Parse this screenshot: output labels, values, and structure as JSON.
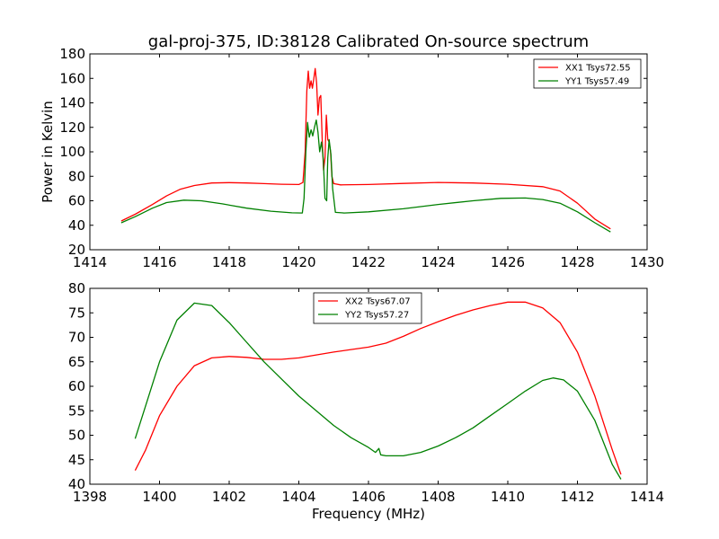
{
  "chart_data": [
    {
      "type": "line",
      "title": "gal-proj-375, ID:38128 Calibrated On-source spectrum",
      "xlabel": "",
      "ylabel": "Power in Kelvin",
      "xlim": [
        1414,
        1430
      ],
      "ylim": [
        20,
        180
      ],
      "xticks": [
        1414,
        1416,
        1418,
        1420,
        1422,
        1424,
        1426,
        1428,
        1430
      ],
      "yticks": [
        20,
        40,
        60,
        80,
        100,
        120,
        140,
        160,
        180
      ],
      "legend_position": "top-right",
      "grid": false,
      "series": [
        {
          "name": "XX1 Tsys72.55",
          "color": "#ff0000",
          "points": [
            [
              1414.9,
              43.5
            ],
            [
              1415.3,
              49
            ],
            [
              1415.8,
              57
            ],
            [
              1416.2,
              64
            ],
            [
              1416.6,
              69.5
            ],
            [
              1417.0,
              72.5
            ],
            [
              1417.5,
              74.5
            ],
            [
              1418.0,
              74.8
            ],
            [
              1418.5,
              74.5
            ],
            [
              1419.0,
              74
            ],
            [
              1419.5,
              73.5
            ],
            [
              1420.0,
              73.3
            ],
            [
              1420.12,
              75
            ],
            [
              1420.18,
              100
            ],
            [
              1420.23,
              150
            ],
            [
              1420.27,
              166
            ],
            [
              1420.31,
              152
            ],
            [
              1420.35,
              158
            ],
            [
              1420.39,
              152
            ],
            [
              1420.43,
              160
            ],
            [
              1420.47,
              168
            ],
            [
              1420.51,
              156
            ],
            [
              1420.55,
              130
            ],
            [
              1420.59,
              144
            ],
            [
              1420.63,
              146
            ],
            [
              1420.67,
              110
            ],
            [
              1420.71,
              85
            ],
            [
              1420.75,
              95
            ],
            [
              1420.79,
              130
            ],
            [
              1420.83,
              110
            ],
            [
              1420.87,
              108
            ],
            [
              1420.91,
              100
            ],
            [
              1420.95,
              80
            ],
            [
              1421.0,
              74
            ],
            [
              1421.2,
              73
            ],
            [
              1422.0,
              73.3
            ],
            [
              1423.0,
              74.2
            ],
            [
              1424.0,
              75
            ],
            [
              1425.0,
              74.5
            ],
            [
              1426.0,
              73.5
            ],
            [
              1427.0,
              71.5
            ],
            [
              1427.5,
              68
            ],
            [
              1428.0,
              58
            ],
            [
              1428.5,
              45
            ],
            [
              1428.95,
              37
            ]
          ]
        },
        {
          "name": "YY1 Tsys57.49",
          "color": "#008000",
          "points": [
            [
              1414.9,
              42
            ],
            [
              1415.3,
              47
            ],
            [
              1415.8,
              54
            ],
            [
              1416.2,
              58.5
            ],
            [
              1416.7,
              60.5
            ],
            [
              1417.2,
              60
            ],
            [
              1417.8,
              57.5
            ],
            [
              1418.5,
              54
            ],
            [
              1419.2,
              51.5
            ],
            [
              1419.8,
              50.2
            ],
            [
              1420.1,
              50
            ],
            [
              1420.15,
              62
            ],
            [
              1420.2,
              100
            ],
            [
              1420.25,
              124
            ],
            [
              1420.3,
              112
            ],
            [
              1420.35,
              118
            ],
            [
              1420.4,
              113
            ],
            [
              1420.45,
              120
            ],
            [
              1420.5,
              126
            ],
            [
              1420.55,
              116
            ],
            [
              1420.6,
              100
            ],
            [
              1420.65,
              108
            ],
            [
              1420.7,
              95
            ],
            [
              1420.75,
              62
            ],
            [
              1420.8,
              60
            ],
            [
              1420.83,
              95
            ],
            [
              1420.87,
              110
            ],
            [
              1420.92,
              98
            ],
            [
              1420.97,
              70
            ],
            [
              1421.05,
              50.5
            ],
            [
              1421.3,
              50
            ],
            [
              1422.0,
              51
            ],
            [
              1423.0,
              53.5
            ],
            [
              1424.0,
              57
            ],
            [
              1425.0,
              60
            ],
            [
              1425.8,
              62
            ],
            [
              1426.5,
              62.3
            ],
            [
              1427.0,
              61
            ],
            [
              1427.5,
              58
            ],
            [
              1428.0,
              51
            ],
            [
              1428.5,
              42
            ],
            [
              1428.95,
              34.5
            ]
          ]
        }
      ]
    },
    {
      "type": "line",
      "title": "",
      "xlabel": "Frequency (MHz)",
      "ylabel": "",
      "xlim": [
        1398,
        1414
      ],
      "ylim": [
        40,
        80
      ],
      "xticks": [
        1398,
        1400,
        1402,
        1404,
        1406,
        1408,
        1410,
        1412,
        1414
      ],
      "yticks": [
        40,
        45,
        50,
        55,
        60,
        65,
        70,
        75,
        80
      ],
      "legend_position": "top-center",
      "grid": false,
      "series": [
        {
          "name": "XX2 Tsys67.07",
          "color": "#ff0000",
          "points": [
            [
              1399.3,
              42.8
            ],
            [
              1399.6,
              47
            ],
            [
              1400.0,
              54
            ],
            [
              1400.5,
              60
            ],
            [
              1401.0,
              64.2
            ],
            [
              1401.5,
              65.8
            ],
            [
              1402.0,
              66.1
            ],
            [
              1402.5,
              65.9
            ],
            [
              1403.0,
              65.5
            ],
            [
              1403.5,
              65.5
            ],
            [
              1404.0,
              65.8
            ],
            [
              1404.5,
              66.4
            ],
            [
              1405.0,
              67
            ],
            [
              1405.5,
              67.5
            ],
            [
              1406.0,
              68
            ],
            [
              1406.5,
              68.8
            ],
            [
              1407.0,
              70.2
            ],
            [
              1407.5,
              71.8
            ],
            [
              1408.0,
              73.2
            ],
            [
              1408.5,
              74.5
            ],
            [
              1409.0,
              75.6
            ],
            [
              1409.5,
              76.5
            ],
            [
              1410.0,
              77.2
            ],
            [
              1410.5,
              77.2
            ],
            [
              1411.0,
              76
            ],
            [
              1411.5,
              73
            ],
            [
              1412.0,
              67
            ],
            [
              1412.5,
              58
            ],
            [
              1413.0,
              47
            ],
            [
              1413.25,
              42
            ]
          ]
        },
        {
          "name": "YY2 Tsys57.27",
          "color": "#008000",
          "points": [
            [
              1399.3,
              49.3
            ],
            [
              1399.6,
              56
            ],
            [
              1400.0,
              65
            ],
            [
              1400.5,
              73.5
            ],
            [
              1401.0,
              77
            ],
            [
              1401.5,
              76.5
            ],
            [
              1402.0,
              73
            ],
            [
              1402.5,
              69
            ],
            [
              1403.0,
              65
            ],
            [
              1403.5,
              61.5
            ],
            [
              1404.0,
              58
            ],
            [
              1404.5,
              55
            ],
            [
              1405.0,
              52
            ],
            [
              1405.5,
              49.5
            ],
            [
              1406.0,
              47.5
            ],
            [
              1406.2,
              46.5
            ],
            [
              1406.3,
              47.3
            ],
            [
              1406.35,
              46
            ],
            [
              1406.5,
              45.8
            ],
            [
              1407.0,
              45.8
            ],
            [
              1407.5,
              46.5
            ],
            [
              1408.0,
              47.8
            ],
            [
              1408.5,
              49.5
            ],
            [
              1409.0,
              51.5
            ],
            [
              1409.5,
              54
            ],
            [
              1410.0,
              56.5
            ],
            [
              1410.5,
              59
            ],
            [
              1411.0,
              61.2
            ],
            [
              1411.3,
              61.7
            ],
            [
              1411.6,
              61.3
            ],
            [
              1412.0,
              59
            ],
            [
              1412.5,
              53
            ],
            [
              1413.0,
              44
            ],
            [
              1413.25,
              41
            ]
          ]
        }
      ]
    }
  ]
}
